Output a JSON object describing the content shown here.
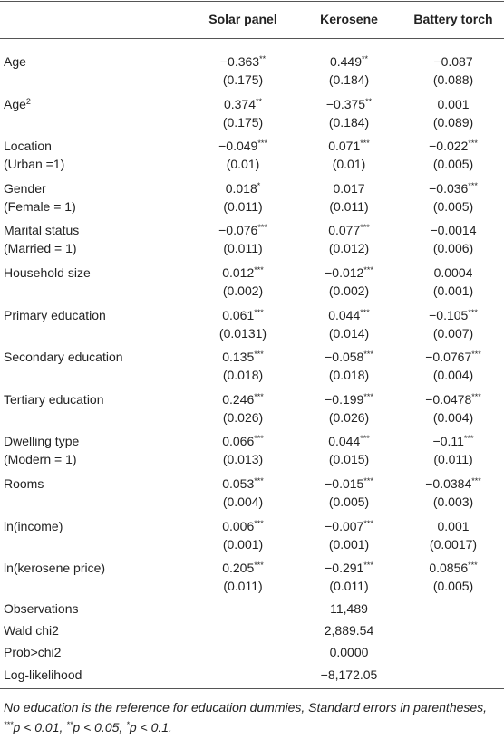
{
  "table": {
    "columns": [
      "Solar panel",
      "Kerosene",
      "Battery torch"
    ],
    "rows": [
      {
        "label": "Age",
        "cells": [
          {
            "b": "−0.363",
            "s": "**",
            "se": "(0.175)"
          },
          {
            "b": "0.449",
            "s": "**",
            "se": "(0.184)"
          },
          {
            "b": "−0.087",
            "se": "(0.088)"
          }
        ]
      },
      {
        "label": "Age",
        "sup": "2",
        "cells": [
          {
            "b": "0.374",
            "s": "**",
            "se": "(0.175)"
          },
          {
            "b": "−0.375",
            "s": "**",
            "se": "(0.184)"
          },
          {
            "b": "0.001",
            "se": "(0.089)"
          }
        ]
      },
      {
        "label": "Location",
        "label2": "(Urban =1)",
        "cells": [
          {
            "b": "−0.049",
            "s": "***",
            "se": "(0.01)"
          },
          {
            "b": "0.071",
            "s": "***",
            "se": "(0.01)"
          },
          {
            "b": "−0.022",
            "s": "***",
            "se": "(0.005)"
          }
        ]
      },
      {
        "label": "Gender",
        "label2": "(Female = 1)",
        "cells": [
          {
            "b": "0.018",
            "s": "*",
            "se": "(0.011)"
          },
          {
            "b": "0.017",
            "se": "(0.011)"
          },
          {
            "b": "−0.036",
            "s": "***",
            "se": "(0.005)"
          }
        ]
      },
      {
        "label": "Marital status",
        "label2": "(Married = 1)",
        "cells": [
          {
            "b": "−0.076",
            "s": "***",
            "se": "(0.011)"
          },
          {
            "b": "0.077",
            "s": "***",
            "se": "(0.012)"
          },
          {
            "b": "−0.0014",
            "se": "(0.006)"
          }
        ]
      },
      {
        "label": "Household size",
        "cells": [
          {
            "b": "0.012",
            "s": "***",
            "se": "(0.002)"
          },
          {
            "b": "−0.012",
            "s": "***",
            "se": "(0.002)"
          },
          {
            "b": "0.0004",
            "se": "(0.001)"
          }
        ]
      },
      {
        "label": "Primary education",
        "cells": [
          {
            "b": "0.061",
            "s": "***",
            "se": "(0.0131)"
          },
          {
            "b": "0.044",
            "s": "***",
            "se": "(0.014)"
          },
          {
            "b": "−0.105",
            "s": "***",
            "se": "(0.007)"
          }
        ]
      },
      {
        "label": "Secondary education",
        "cells": [
          {
            "b": "0.135",
            "s": "***",
            "se": "(0.018)"
          },
          {
            "b": "−0.058",
            "s": "***",
            "se": "(0.018)"
          },
          {
            "b": "−0.0767",
            "s": "***",
            "se": "(0.004)"
          }
        ]
      },
      {
        "label": "Tertiary education",
        "cells": [
          {
            "b": "0.246",
            "s": "***",
            "se": "(0.026)"
          },
          {
            "b": "−0.199",
            "s": "***",
            "se": "(0.026)"
          },
          {
            "b": "−0.0478",
            "s": "***",
            "se": "(0.004)"
          }
        ]
      },
      {
        "label": "Dwelling type",
        "label2": "(Modern = 1)",
        "cells": [
          {
            "b": "0.066",
            "s": "***",
            "se": "(0.013)"
          },
          {
            "b": "0.044",
            "s": "***",
            "se": "(0.015)"
          },
          {
            "b": "−0.11",
            "s": "***",
            "se": "(0.011)"
          }
        ]
      },
      {
        "label": "Rooms",
        "cells": [
          {
            "b": "0.053",
            "s": "***",
            "se": "(0.004)"
          },
          {
            "b": "−0.015",
            "s": "***",
            "se": "(0.005)"
          },
          {
            "b": "−0.0384",
            "s": "***",
            "se": "(0.003)"
          }
        ]
      },
      {
        "label": "ln(income)",
        "cells": [
          {
            "b": "0.006",
            "s": "***",
            "se": "(0.001)"
          },
          {
            "b": "−0.007",
            "s": "***",
            "se": "(0.001)"
          },
          {
            "b": "0.001",
            "se": "(0.0017)"
          }
        ]
      },
      {
        "label": "ln(kerosene price)",
        "cells": [
          {
            "b": "0.205",
            "s": "***",
            "se": "(0.011)"
          },
          {
            "b": "−0.291",
            "s": "***",
            "se": "(0.011)"
          },
          {
            "b": "0.0856",
            "s": "***",
            "se": "(0.005)"
          }
        ]
      }
    ],
    "stats": [
      {
        "label": "Observations",
        "value": "11,489"
      },
      {
        "label": "Wald chi2",
        "value": "2,889.54"
      },
      {
        "label": "Prob>chi2",
        "value": "0.0000"
      },
      {
        "label": "Log-likelihood",
        "value": "−8,172.05"
      }
    ],
    "footnote": {
      "text": "No education is the reference for education dummies, Standard errors in parentheses,",
      "notes": [
        {
          "stars": "***",
          "text": "p < 0.01,"
        },
        {
          "stars": "**",
          "text": "p < 0.05,"
        },
        {
          "stars": "*",
          "text": "p < 0.1."
        }
      ]
    }
  }
}
